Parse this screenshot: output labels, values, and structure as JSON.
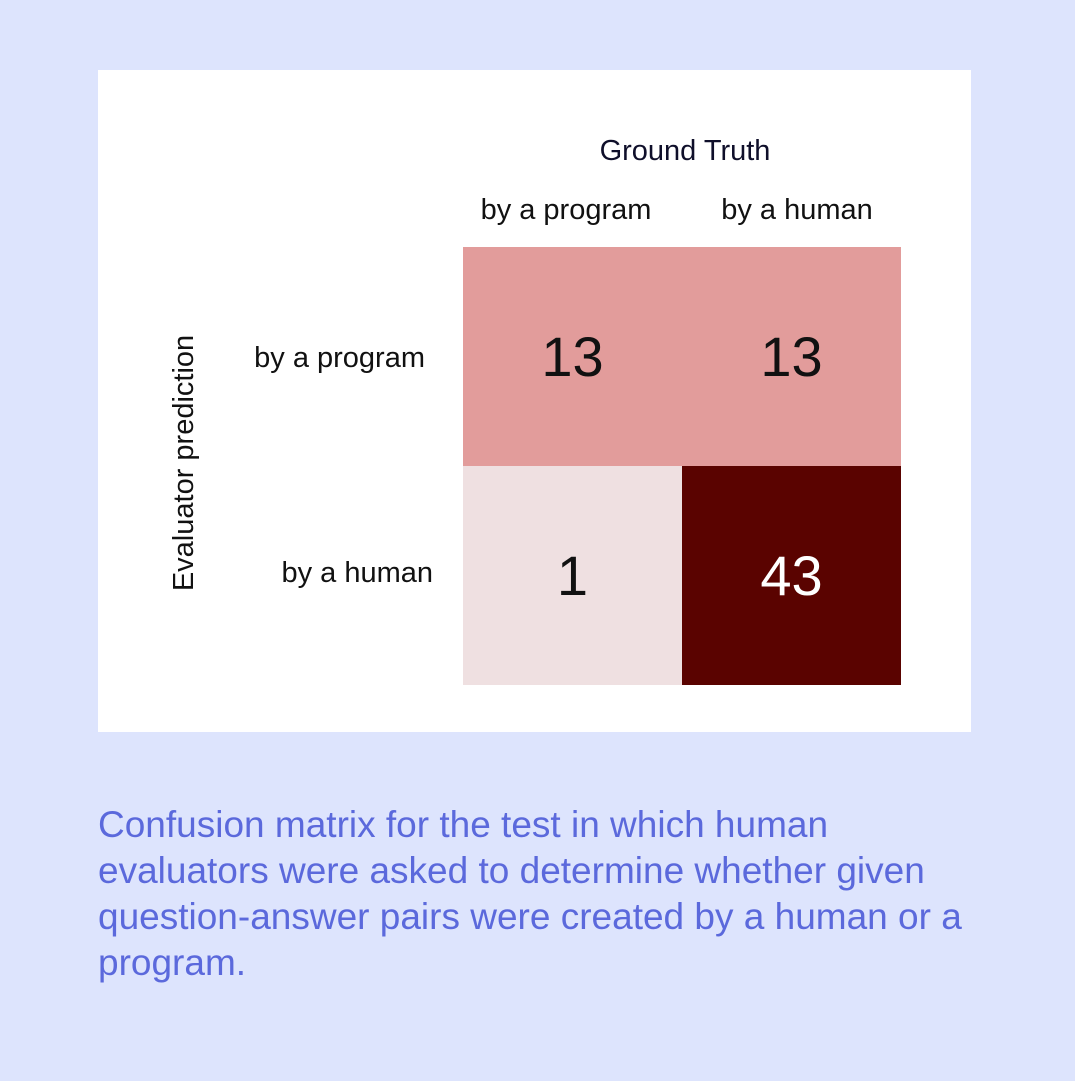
{
  "chart_data": {
    "type": "heatmap",
    "title": "Ground Truth",
    "xlabel": "Ground Truth",
    "ylabel": "Evaluator prediction",
    "x_categories": [
      "by a program",
      "by a human"
    ],
    "y_categories": [
      "by a program",
      "by a human"
    ],
    "values": [
      [
        13,
        13
      ],
      [
        1,
        43
      ]
    ],
    "colors": {
      "low": "#efe0e1",
      "mid": "#e29c9b",
      "high": "#5a0300"
    }
  },
  "caption": "Confusion matrix for the test in which human evaluators were asked to determine whether given question-answer pairs were created by a human or a program."
}
